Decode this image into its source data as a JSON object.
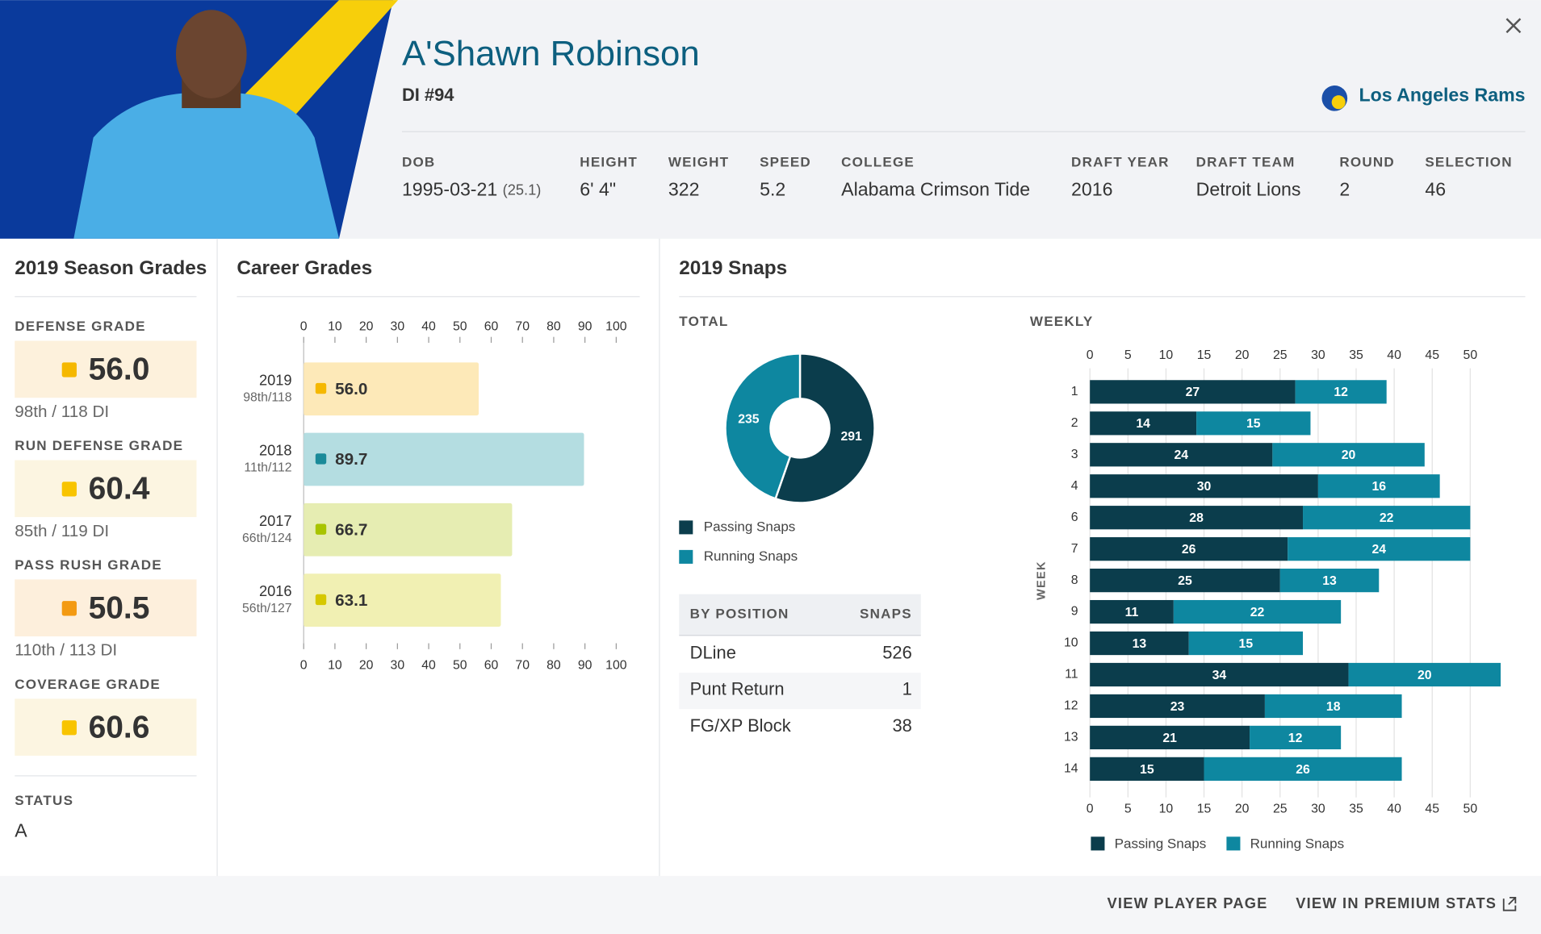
{
  "header": {
    "name": "A'Shawn Robinson",
    "position": "DI #94",
    "team": "Los Angeles Rams",
    "fields": [
      {
        "label": "DOB",
        "value": "1995-03-21",
        "note": "(25.1)"
      },
      {
        "label": "HEIGHT",
        "value": "6' 4\""
      },
      {
        "label": "WEIGHT",
        "value": "322"
      },
      {
        "label": "SPEED",
        "value": "5.2"
      },
      {
        "label": "COLLEGE",
        "value": "Alabama Crimson Tide"
      },
      {
        "label": "DRAFT YEAR",
        "value": "2016"
      },
      {
        "label": "DRAFT TEAM",
        "value": "Detroit Lions"
      },
      {
        "label": "ROUND",
        "value": "2"
      },
      {
        "label": "SELECTION",
        "value": "46"
      }
    ]
  },
  "season_grades": {
    "title": "2019 Season Grades",
    "grades": [
      {
        "label": "DEFENSE GRADE",
        "value": "56.0",
        "rank": "98th / 118 DI",
        "color": "#f5b800",
        "bg": "#fdf1dc"
      },
      {
        "label": "RUN DEFENSE GRADE",
        "value": "60.4",
        "rank": "85th / 119 DI",
        "color": "#f8c400",
        "bg": "#fcf5e1"
      },
      {
        "label": "PASS RUSH GRADE",
        "value": "50.5",
        "rank": "110th / 113 DI",
        "color": "#f39a12",
        "bg": "#fdefdc"
      },
      {
        "label": "COVERAGE GRADE",
        "value": "60.6",
        "rank": "",
        "color": "#f8c400",
        "bg": "#fcf5e1"
      }
    ],
    "status_label": "STATUS",
    "status_value": "A"
  },
  "career_title": "Career Grades",
  "snaps_title": "2019 Snaps",
  "chart_data": [
    {
      "type": "bar",
      "categories": [
        "2019",
        "2018",
        "2017",
        "2016"
      ],
      "ranks": [
        "98th/118",
        "11th/112",
        "66th/124",
        "56th/127"
      ],
      "values": [
        56.0,
        89.7,
        66.7,
        63.1
      ],
      "value_labels": [
        "56.0",
        "89.7",
        "66.7",
        "63.1"
      ],
      "colors": [
        "#fde9b8",
        "#b4dde1",
        "#e6edb2",
        "#f1f0b3"
      ],
      "dot_colors": [
        "#f5b800",
        "#1a8a99",
        "#a8c400",
        "#d6c800"
      ],
      "xlim": [
        0,
        100
      ],
      "xticks": [
        0,
        10,
        20,
        30,
        40,
        50,
        60,
        70,
        80,
        90,
        100
      ]
    },
    {
      "type": "pie",
      "title": "TOTAL",
      "labels": [
        "Passing Snaps",
        "Running Snaps"
      ],
      "values": [
        291,
        235
      ],
      "colors": [
        "#0b3d4c",
        "#0e87a0"
      ]
    },
    {
      "type": "stacked-bar",
      "title": "WEEKLY",
      "y_label": "WEEK",
      "categories": [
        "1",
        "2",
        "3",
        "4",
        "6",
        "7",
        "8",
        "9",
        "10",
        "11",
        "12",
        "13",
        "14"
      ],
      "series": [
        {
          "name": "Passing Snaps",
          "color": "#0b3d4c",
          "values": [
            27,
            14,
            24,
            30,
            28,
            26,
            25,
            11,
            13,
            34,
            23,
            21,
            15
          ]
        },
        {
          "name": "Running Snaps",
          "color": "#0e87a0",
          "values": [
            12,
            15,
            20,
            16,
            22,
            24,
            13,
            22,
            15,
            20,
            18,
            12,
            26
          ]
        }
      ],
      "xlim": [
        0,
        54
      ],
      "xticks": [
        0,
        5,
        10,
        15,
        20,
        25,
        30,
        35,
        40,
        45,
        50
      ],
      "grid": true
    }
  ],
  "position_table": {
    "headers": [
      "BY POSITION",
      "SNAPS"
    ],
    "rows": [
      [
        "DLine",
        "526"
      ],
      [
        "Punt Return",
        "1"
      ],
      [
        "FG/XP Block",
        "38"
      ]
    ]
  },
  "footer": {
    "links": [
      "VIEW PLAYER PAGE",
      "VIEW IN PREMIUM STATS"
    ]
  }
}
